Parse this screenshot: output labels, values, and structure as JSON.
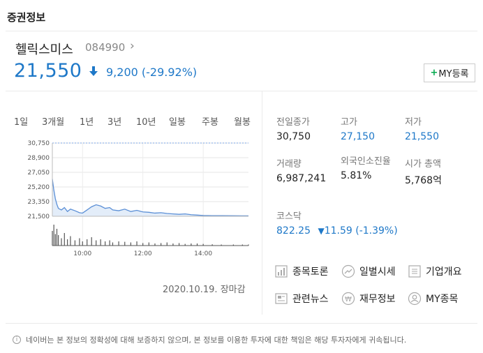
{
  "section_title": "증권정보",
  "stock": {
    "name": "헬릭스미스",
    "code": "084990",
    "price": "21,550",
    "change": "9,200",
    "change_pct": "(-29.92%)",
    "my_button": "MY등록",
    "direction": "down",
    "color_down": "#1e78c8"
  },
  "tabs": [
    {
      "label": "1일",
      "active": true
    },
    {
      "label": "3개월",
      "active": false
    },
    {
      "label": "1년",
      "active": false
    },
    {
      "label": "3년",
      "active": false
    },
    {
      "label": "10년",
      "active": false
    },
    {
      "label": "일봉",
      "active": false
    },
    {
      "label": "주봉",
      "active": false
    },
    {
      "label": "월봉",
      "active": false
    }
  ],
  "chart_data": {
    "type": "area",
    "y_ticks": [
      "30,750",
      "28,900",
      "27,050",
      "25,200",
      "23,350",
      "21,500"
    ],
    "x_ticks": [
      "10:00",
      "12:00",
      "14:00"
    ],
    "ylim": [
      21000,
      31000
    ],
    "reference_line": 30750,
    "x": [
      9.0,
      9.05,
      9.1,
      9.15,
      9.2,
      9.3,
      9.4,
      9.5,
      9.6,
      9.75,
      9.9,
      10.0,
      10.15,
      10.3,
      10.45,
      10.6,
      10.75,
      10.9,
      11.0,
      11.2,
      11.4,
      11.6,
      11.8,
      12.0,
      12.2,
      12.4,
      12.6,
      12.8,
      13.0,
      13.2,
      13.4,
      13.6,
      13.8,
      14.0,
      14.3,
      14.6,
      15.0,
      15.3,
      15.5
    ],
    "values": [
      26200,
      24800,
      23700,
      23000,
      22500,
      22300,
      22600,
      22100,
      22400,
      22200,
      21950,
      21900,
      22300,
      22700,
      22950,
      22800,
      22500,
      22600,
      22300,
      22200,
      22400,
      22100,
      22250,
      22050,
      22000,
      21900,
      21950,
      21850,
      21800,
      21750,
      21800,
      21700,
      21650,
      21600,
      21580,
      21570,
      21560,
      21550,
      21550
    ],
    "volume": [
      0.7,
      1.0,
      0.55,
      0.8,
      0.5,
      0.35,
      0.6,
      0.3,
      0.45,
      0.25,
      0.35,
      0.2,
      0.3,
      0.4,
      0.25,
      0.3,
      0.2,
      0.25,
      0.15,
      0.2,
      0.18,
      0.15,
      0.2,
      0.12,
      0.15,
      0.1,
      0.12,
      0.15,
      0.1,
      0.12,
      0.08,
      0.1,
      0.1,
      0.08,
      0.06,
      0.05,
      0.05,
      0.05,
      0.05
    ],
    "xlim": [
      9.0,
      15.5
    ],
    "date_label": "2020.10.19. 장마감",
    "line_color": "#5b8fd6",
    "fill_color": "#e3edf9",
    "ref_color": "#7aa3e5",
    "volume_color": "#555555"
  },
  "stats": [
    {
      "label": "전일종가",
      "value": "30,750",
      "blue": false
    },
    {
      "label": "고가",
      "value": "27,150",
      "blue": true
    },
    {
      "label": "저가",
      "value": "21,550",
      "blue": true
    },
    {
      "label": "거래량",
      "value": "6,987,241",
      "blue": false
    },
    {
      "label": "외국인소진율",
      "value": "5.81%",
      "blue": false
    },
    {
      "label": "시가 총액",
      "value": "5,768억",
      "blue": false
    }
  ],
  "kosdaq": {
    "label": "코스닥",
    "value": "822.25",
    "change": "11.59",
    "change_pct": "(-1.39%)"
  },
  "links": [
    {
      "label": "종목토론",
      "icon": "chart-icon"
    },
    {
      "label": "일별시세",
      "icon": "trend-icon"
    },
    {
      "label": "기업개요",
      "icon": "list-icon"
    },
    {
      "label": "관련뉴스",
      "icon": "news-icon"
    },
    {
      "label": "재무정보",
      "icon": "coin-icon"
    },
    {
      "label": "MY종목",
      "icon": "user-icon"
    }
  ],
  "notice": "네이버는 본 정보의 정확성에 대해 보증하지 않으며, 본 정보를 이용한 투자에 대한 책임은 해당 투자자에게 귀속됩니다."
}
